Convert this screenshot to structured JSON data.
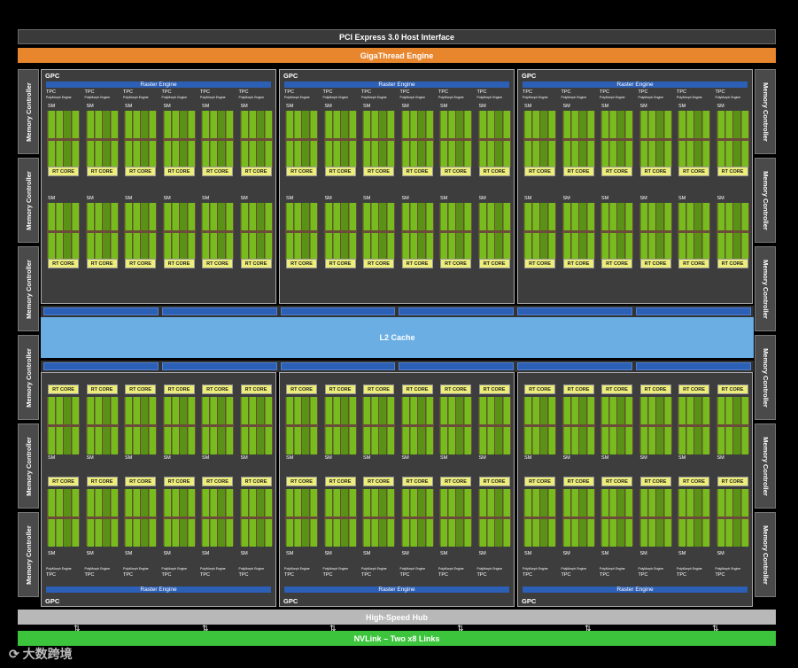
{
  "top": {
    "pcie": "PCI Express 3.0 Host Interface",
    "gigathread": "GigaThread Engine"
  },
  "memory_controller_label": "Memory Controller",
  "gpc_label": "GPC",
  "raster_label": "Raster Engine",
  "tpc_label": "TPC",
  "polymorph_label": "PolyMorph Engine",
  "sm_label": "SM",
  "rt_core_label": "RT CORE",
  "l2_label": "L2 Cache",
  "hub_label": "High-Speed Hub",
  "nvlink_label": "NVLink – Two x8 Links",
  "watermark": "大数跨境",
  "colors": {
    "gigathread": "#e8862e",
    "raster": "#2c5fb6",
    "cuda_cores": "#78bb1f",
    "rt_core": "#eded7a",
    "l2": "#6aaee4",
    "nvlink": "#3cc43c",
    "hub": "#b8b8b8"
  },
  "icons": {
    "link_arrow": "double-arrow-icon"
  }
}
